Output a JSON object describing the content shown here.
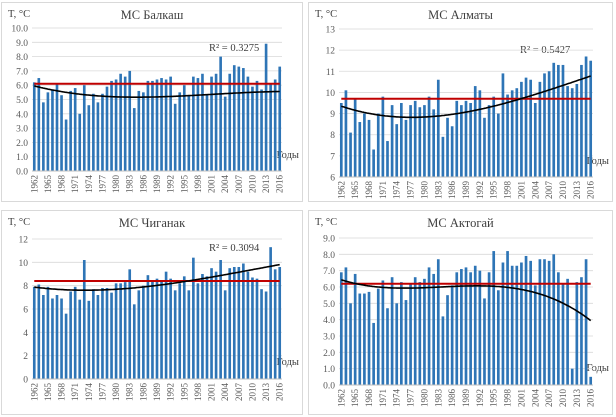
{
  "chart_data": [
    {
      "type": "bar",
      "title": "МС Балкаш",
      "ylabel": "T, °C",
      "xlabel": "Годы",
      "r2": "R² = 0.3275",
      "ylim": [
        0,
        10
      ],
      "ytick_step": 1,
      "ytick_decimals": 1,
      "years": [
        1962,
        1963,
        1964,
        1965,
        1966,
        1967,
        1968,
        1969,
        1970,
        1971,
        1972,
        1973,
        1974,
        1975,
        1976,
        1977,
        1978,
        1979,
        1980,
        1981,
        1982,
        1983,
        1984,
        1985,
        1986,
        1987,
        1988,
        1989,
        1990,
        1991,
        1992,
        1993,
        1994,
        1995,
        1996,
        1997,
        1998,
        1999,
        2000,
        2001,
        2002,
        2003,
        2004,
        2005,
        2006,
        2007,
        2008,
        2009,
        2010,
        2011,
        2012,
        2013,
        2014,
        2015,
        2016
      ],
      "xtick_labels": [
        "1962",
        "1965",
        "1968",
        "1971",
        "1974",
        "1977",
        "1980",
        "1983",
        "1986",
        "1989",
        "1992",
        "1995",
        "1998",
        "2001",
        "2004",
        "2007",
        "2010",
        "2013",
        "2016"
      ],
      "values": [
        6.2,
        6.5,
        4.8,
        5.5,
        5.7,
        6.1,
        5.3,
        3.6,
        5.6,
        5.8,
        4.0,
        6.0,
        4.6,
        5.4,
        4.8,
        5.4,
        5.9,
        6.3,
        6.4,
        6.8,
        6.6,
        7.0,
        4.4,
        5.6,
        5.5,
        6.3,
        6.3,
        6.4,
        6.5,
        6.4,
        6.6,
        4.7,
        5.5,
        6.0,
        5.3,
        6.6,
        6.5,
        6.8,
        5.3,
        6.6,
        6.8,
        8.0,
        5.2,
        6.8,
        7.4,
        7.3,
        7.2,
        6.6,
        5.9,
        6.3,
        5.7,
        8.9,
        6.1,
        6.4,
        7.3
      ],
      "mean": 6.1,
      "trend_coefs": [
        5.95,
        -0.0807,
        0.00251,
        -2.13e-05
      ],
      "bar_color": "#2e75b6",
      "mean_color": "#c00000",
      "trend_color": "#000000",
      "grid": true
    },
    {
      "type": "bar",
      "title": "МС Алматы",
      "ylabel": "T, °C",
      "xlabel": "Годы",
      "r2": "R² = 0.5427",
      "ylim": [
        6,
        13
      ],
      "ytick_step": 1,
      "ytick_decimals": 0,
      "years": [
        1962,
        1963,
        1964,
        1965,
        1966,
        1967,
        1968,
        1969,
        1970,
        1971,
        1972,
        1973,
        1974,
        1975,
        1976,
        1977,
        1978,
        1979,
        1980,
        1981,
        1982,
        1983,
        1984,
        1985,
        1986,
        1987,
        1988,
        1989,
        1990,
        1991,
        1992,
        1993,
        1994,
        1995,
        1996,
        1997,
        1998,
        1999,
        2000,
        2001,
        2002,
        2003,
        2004,
        2005,
        2006,
        2007,
        2008,
        2009,
        2010,
        2011,
        2012,
        2013,
        2014,
        2015,
        2016
      ],
      "xtick_labels": [
        "1962",
        "1965",
        "1968",
        "1971",
        "1974",
        "1977",
        "1980",
        "1983",
        "1986",
        "1989",
        "1992",
        "1995",
        "1998",
        "2001",
        "2004",
        "2007",
        "2010",
        "2013",
        "2016"
      ],
      "values": [
        9.5,
        10.1,
        8.1,
        9.7,
        8.6,
        9.0,
        8.7,
        7.3,
        9.0,
        9.8,
        7.7,
        9.4,
        8.5,
        9.5,
        8.7,
        9.4,
        9.6,
        9.3,
        9.4,
        9.8,
        9.2,
        10.6,
        7.9,
        8.8,
        8.4,
        9.6,
        9.4,
        9.6,
        9.5,
        10.3,
        10.1,
        8.8,
        9.4,
        9.8,
        9.0,
        10.9,
        9.9,
        10.1,
        10.2,
        10.5,
        10.7,
        10.6,
        9.5,
        10.5,
        10.9,
        11.0,
        11.4,
        11.3,
        11.3,
        10.3,
        10.2,
        10.4,
        11.3,
        11.7,
        11.5
      ],
      "mean": 9.7,
      "trend_coefs": [
        9.35,
        -0.0734,
        0.00282,
        -1.8e-05
      ],
      "bar_color": "#2e75b6",
      "mean_color": "#c00000",
      "trend_color": "#000000",
      "grid": true
    },
    {
      "type": "bar",
      "title": "МС Чиганак",
      "ylabel": "T, °C",
      "xlabel": "Годы",
      "r2": "R² = 0.3094",
      "ylim": [
        0,
        12
      ],
      "ytick_step": 2,
      "ytick_decimals": 0,
      "years": [
        1962,
        1963,
        1964,
        1965,
        1966,
        1967,
        1968,
        1969,
        1970,
        1971,
        1972,
        1973,
        1974,
        1975,
        1976,
        1977,
        1978,
        1979,
        1980,
        1981,
        1982,
        1983,
        1984,
        1985,
        1986,
        1987,
        1988,
        1989,
        1990,
        1991,
        1992,
        1993,
        1994,
        1995,
        1996,
        1997,
        1998,
        1999,
        2000,
        2001,
        2002,
        2003,
        2004,
        2005,
        2006,
        2007,
        2008,
        2009,
        2010,
        2011,
        2012,
        2013,
        2014,
        2015,
        2016
      ],
      "xtick_labels": [
        "1962",
        "1965",
        "1968",
        "1971",
        "1974",
        "1977",
        "1980",
        "1983",
        "1986",
        "1989",
        "1992",
        "1995",
        "1998",
        "2001",
        "2004",
        "2007",
        "2010",
        "2013",
        "2016"
      ],
      "values": [
        7.9,
        8.1,
        7.2,
        7.9,
        6.9,
        7.2,
        6.9,
        5.6,
        7.5,
        7.9,
        6.8,
        10.2,
        6.7,
        7.7,
        7.2,
        7.8,
        7.8,
        7.4,
        8.2,
        8.2,
        8.3,
        9.4,
        6.4,
        7.6,
        8.0,
        8.9,
        8.4,
        8.6,
        8.4,
        9.2,
        8.6,
        7.6,
        8.2,
        8.8,
        7.6,
        10.4,
        8.2,
        9.0,
        8.8,
        9.5,
        9.2,
        10.2,
        7.6,
        9.5,
        9.6,
        9.6,
        9.9,
        9.2,
        8.7,
        8.6,
        7.7,
        7.5,
        11.3,
        9.4,
        9.6
      ],
      "mean": 8.4,
      "trend_coefs": [
        7.88,
        -0.0505,
        0.00254,
        -1.75e-05
      ],
      "bar_color": "#2e75b6",
      "mean_color": "#c00000",
      "trend_color": "#000000",
      "grid": true
    },
    {
      "type": "bar",
      "title": "МС Актогай",
      "ylabel": "T, °C",
      "xlabel": "Годы",
      "r2": "",
      "ylim": [
        0,
        9
      ],
      "ytick_step": 1,
      "ytick_decimals": 1,
      "years": [
        1962,
        1963,
        1964,
        1965,
        1966,
        1967,
        1968,
        1969,
        1970,
        1971,
        1972,
        1973,
        1974,
        1975,
        1976,
        1977,
        1978,
        1979,
        1980,
        1981,
        1982,
        1983,
        1984,
        1985,
        1986,
        1987,
        1988,
        1989,
        1990,
        1991,
        1992,
        1993,
        1994,
        1995,
        1996,
        1997,
        1998,
        1999,
        2000,
        2001,
        2002,
        2003,
        2004,
        2005,
        2006,
        2007,
        2008,
        2009,
        2010,
        2011,
        2012,
        2013,
        2014,
        2015,
        2016
      ],
      "xtick_labels": [
        "1962",
        "1965",
        "1968",
        "1971",
        "1974",
        "1977",
        "1980",
        "1983",
        "1986",
        "1989",
        "1992",
        "1995",
        "1998",
        "2001",
        "2004",
        "2007",
        "2010",
        "2013",
        "2016"
      ],
      "values": [
        6.9,
        7.2,
        5.0,
        6.8,
        5.6,
        5.6,
        5.7,
        3.8,
        5.9,
        6.4,
        4.7,
        6.6,
        5.0,
        6.3,
        5.2,
        6.2,
        6.6,
        6.3,
        6.5,
        7.2,
        6.8,
        7.7,
        4.2,
        5.5,
        6.1,
        6.9,
        7.1,
        7.2,
        6.9,
        7.3,
        7.0,
        5.3,
        6.9,
        8.2,
        5.8,
        7.5,
        8.2,
        7.3,
        7.3,
        7.5,
        7.9,
        7.6,
        6.1,
        7.7,
        7.7,
        7.6,
        8.0,
        6.9,
        6.2,
        6.5,
        1.0,
        6.3,
        6.6,
        7.7,
        0.5
      ],
      "mean": 6.2,
      "trend_coefs": [
        6.44,
        -0.0882,
        0.00472,
        -7.3e-05
      ],
      "bar_color": "#2e75b6",
      "mean_color": "#c00000",
      "trend_color": "#000000",
      "grid": true
    }
  ]
}
